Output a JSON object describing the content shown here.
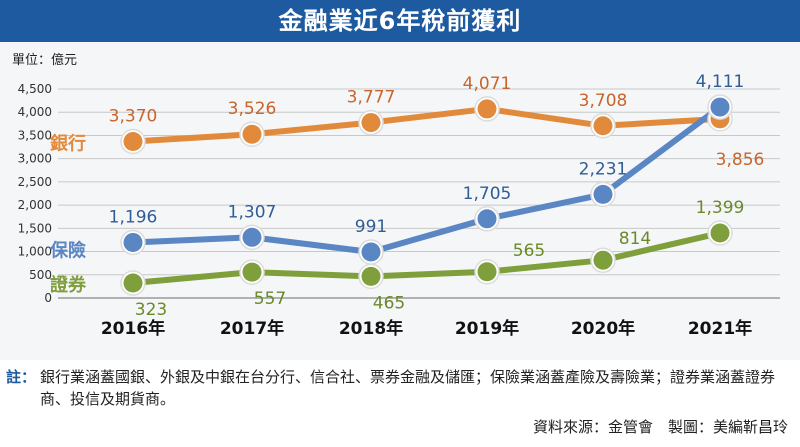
{
  "title": "金融業近6年稅前獲利",
  "chart_data": {
    "type": "line",
    "title": "金融業近6年稅前獲利",
    "unit_label": "單位：億元",
    "categories": [
      "2016年",
      "2017年",
      "2018年",
      "2019年",
      "2020年",
      "2021年"
    ],
    "ylim": [
      0,
      4500
    ],
    "yticks": [
      "0",
      "500",
      "1,000",
      "1,500",
      "2,000",
      "2,500",
      "3,000",
      "3,500",
      "4,000",
      "4,500"
    ],
    "grid": true,
    "series": [
      {
        "name": "銀行",
        "color": "#e28a3c",
        "label_color": "#c8652a",
        "values": [
          3370,
          3526,
          3777,
          4071,
          3708,
          3856
        ],
        "labels": [
          "3,370",
          "3,526",
          "3,777",
          "4,071",
          "3,708",
          "3,856"
        ]
      },
      {
        "name": "保險",
        "color": "#5b86c4",
        "label_color": "#2f5d94",
        "values": [
          1196,
          1307,
          991,
          1705,
          2231,
          4111
        ],
        "labels": [
          "1,196",
          "1,307",
          "991",
          "1,705",
          "2,231",
          "4,111"
        ]
      },
      {
        "name": "證券",
        "color": "#7e9f3b",
        "label_color": "#6a8a2a",
        "values": [
          323,
          557,
          465,
          565,
          814,
          1399
        ],
        "labels": [
          "323",
          "557",
          "465",
          "565",
          "814",
          "1,399"
        ]
      }
    ]
  },
  "notes": {
    "label": "註：",
    "text": "銀行業涵蓋國銀、外銀及中銀在台分行、信合社、票券金融及儲匯；保險業涵蓋產險及壽險業；證券業涵蓋證券商、投信及期貨商。",
    "source": "資料來源：金管會　製圖：美編靳昌玲"
  }
}
